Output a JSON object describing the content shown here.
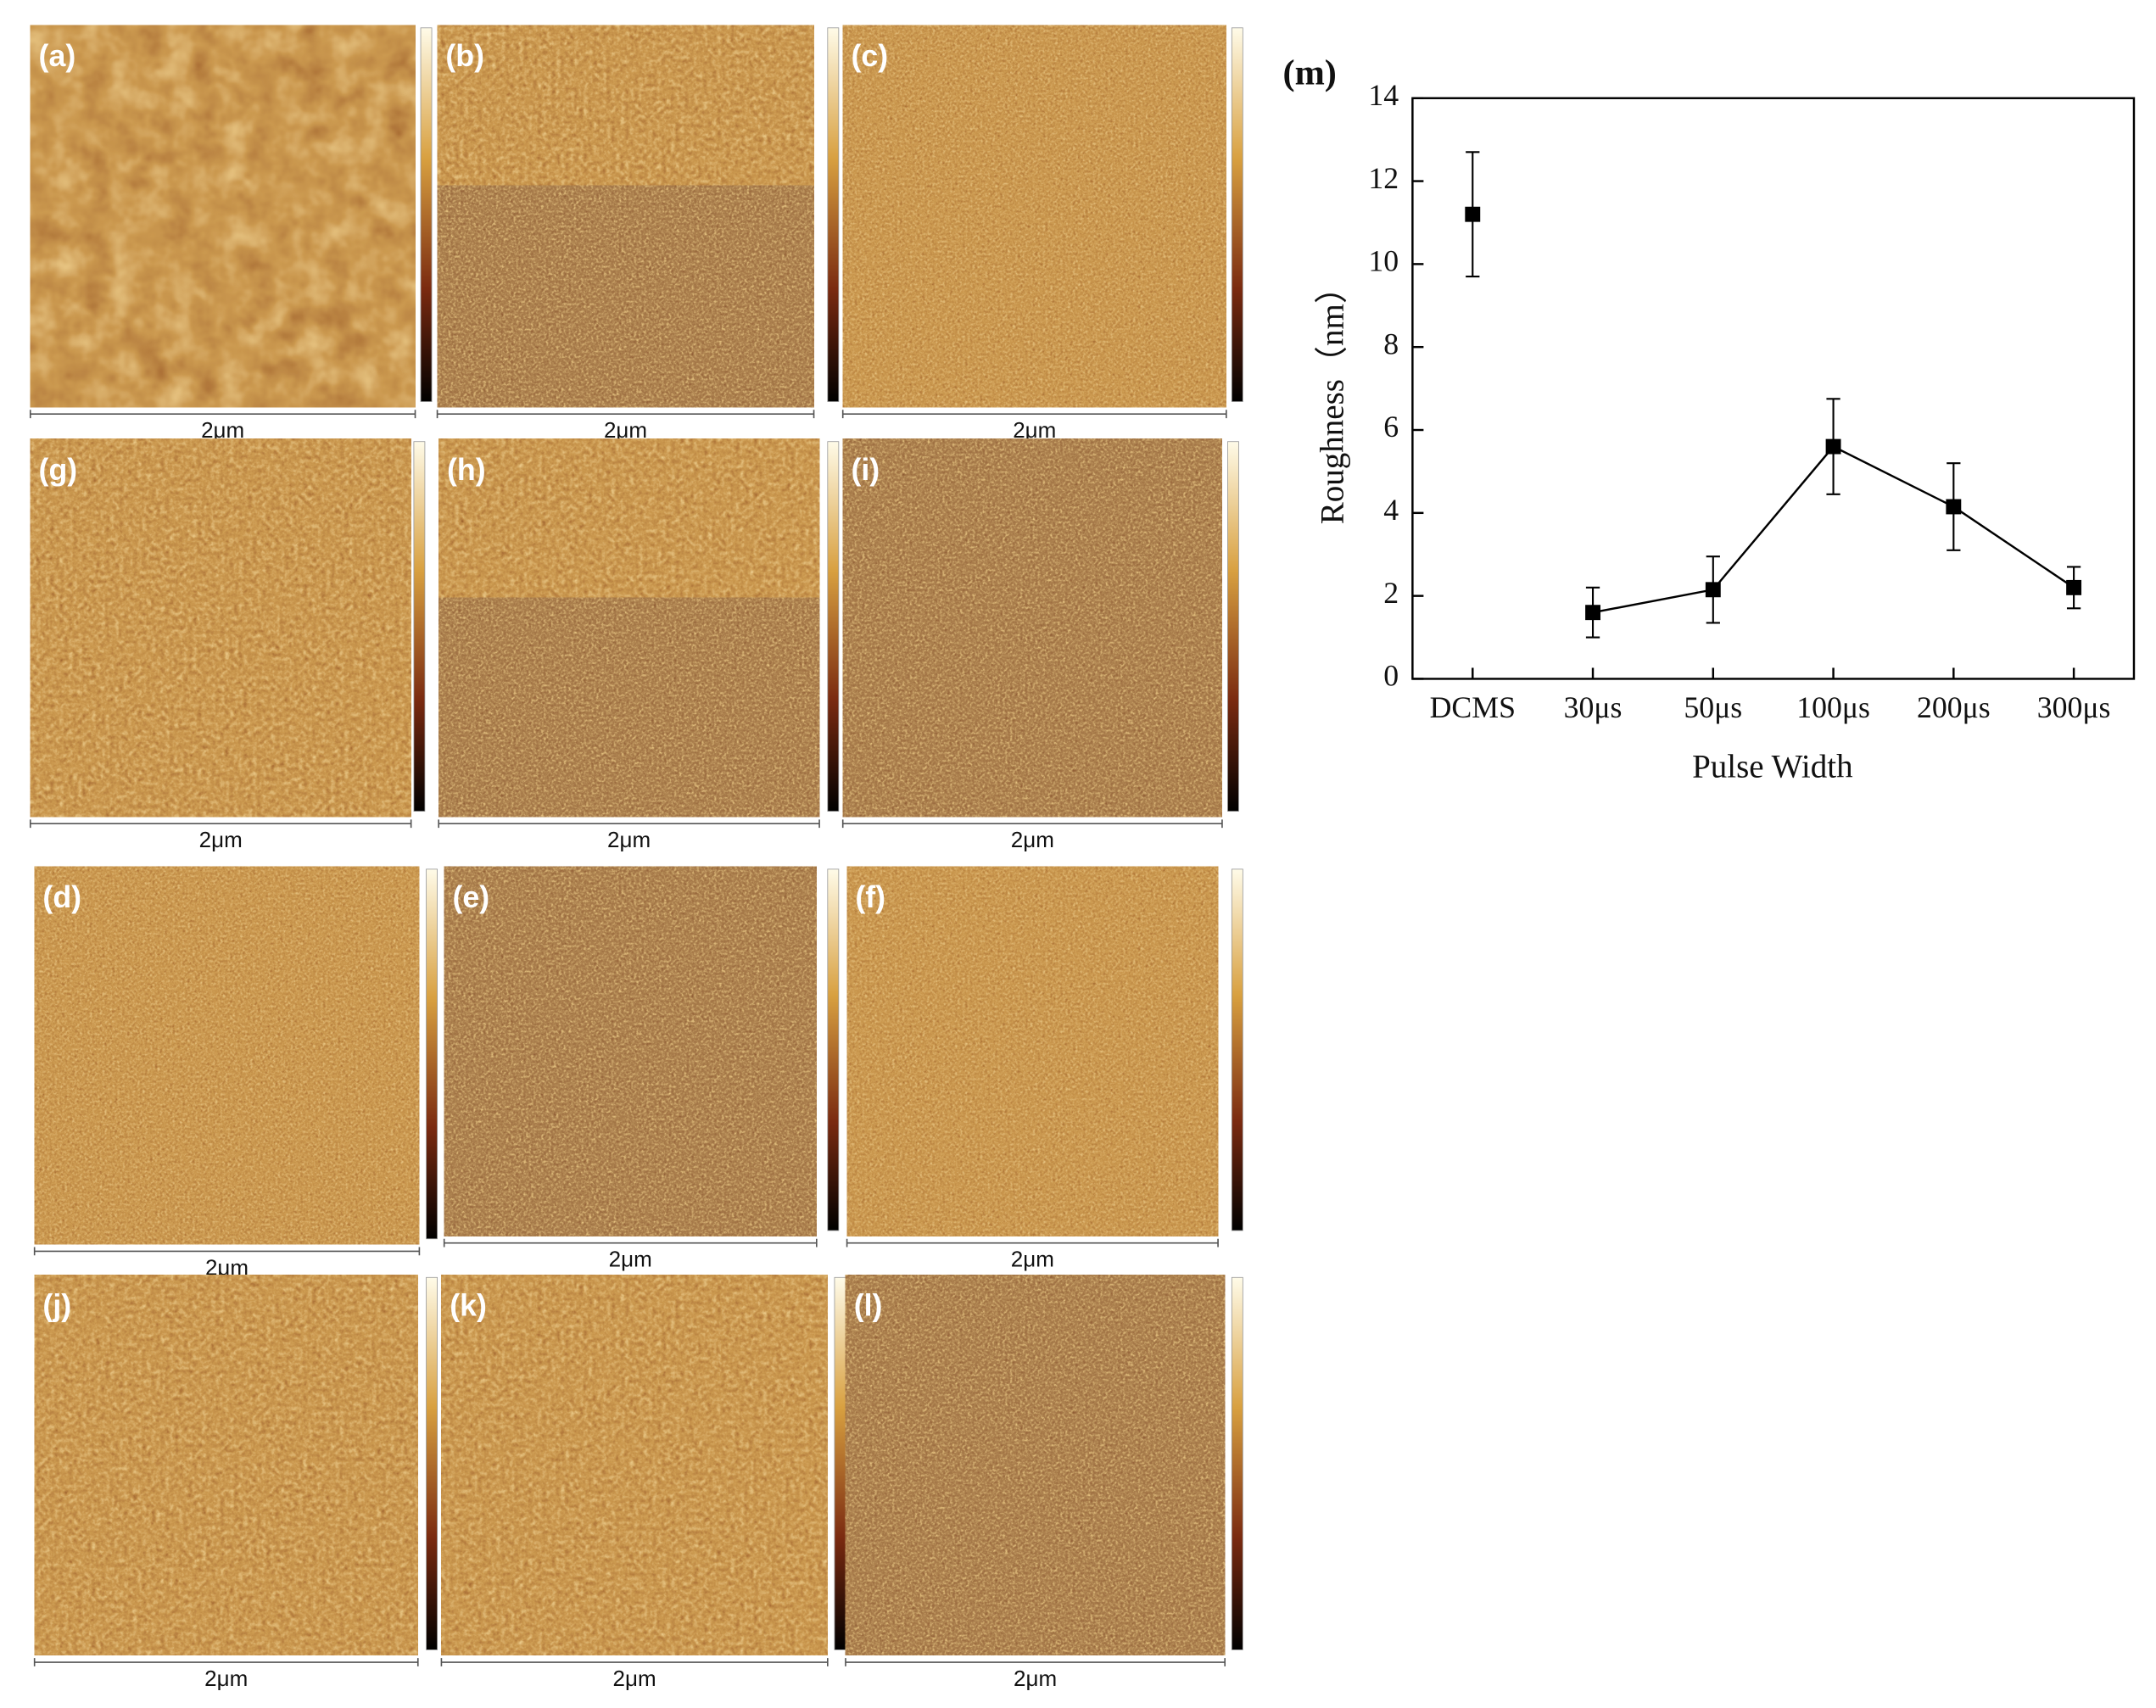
{
  "panels": [
    {
      "label": "(a)",
      "scale": "2μm"
    },
    {
      "label": "(b)",
      "scale": "2μm"
    },
    {
      "label": "(c)",
      "scale": "2μm"
    },
    {
      "label": "(g)",
      "scale": "2μm"
    },
    {
      "label": "(h)",
      "scale": "2μm"
    },
    {
      "label": "(i)",
      "scale": "2μm"
    },
    {
      "label": "(d)",
      "scale": "2μm"
    },
    {
      "label": "(e)",
      "scale": "2μm"
    },
    {
      "label": "(f)",
      "scale": "2μm"
    },
    {
      "label": "(j)",
      "scale": "2μm"
    },
    {
      "label": "(k)",
      "scale": "2μm"
    },
    {
      "label": "(l)",
      "scale": "2μm"
    }
  ],
  "chart_data": {
    "type": "line",
    "title": "(m)",
    "x_label": "Pulse Width",
    "y_label": "Roughness（nm）",
    "categories": [
      "DCMS",
      "30μs",
      "50μs",
      "100μs",
      "200μs",
      "300μs"
    ],
    "series": [
      {
        "color": "#000000",
        "line": false,
        "values": [
          11.2,
          null,
          null,
          null,
          null,
          null
        ],
        "errors": [
          1.5,
          null,
          null,
          null,
          null,
          null
        ]
      },
      {
        "color": "#000000",
        "line": true,
        "values": [
          null,
          1.6,
          2.15,
          5.6,
          4.15,
          2.2
        ],
        "errors": [
          null,
          0.6,
          0.8,
          1.15,
          1.05,
          0.5
        ]
      }
    ],
    "ylim": [
      0,
      14
    ],
    "yticks": [
      0,
      2,
      4,
      6,
      8,
      10,
      12,
      14
    ],
    "grid": false
  }
}
